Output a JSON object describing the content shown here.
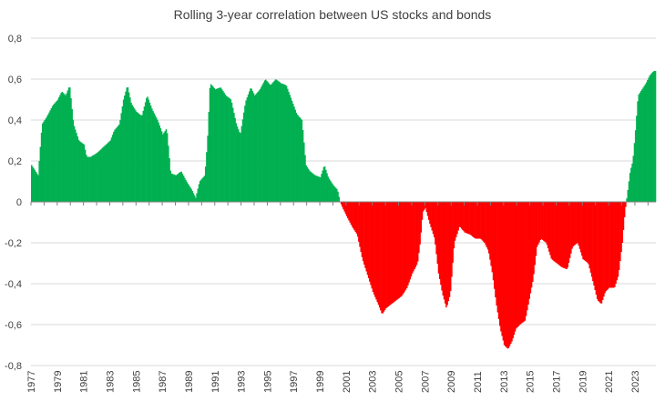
{
  "chart_data": {
    "type": "bar",
    "title": "Rolling 3-year correlation between US stocks and bonds",
    "xlabel": "",
    "ylabel": "",
    "ylim": [
      -0.8,
      0.8
    ],
    "y_ticks": [
      "0,8",
      "0,6",
      "0,4",
      "0,2",
      "0",
      "-0,2",
      "-0,4",
      "-0,6",
      "-0,8"
    ],
    "y_tick_values": [
      0.8,
      0.6,
      0.4,
      0.2,
      0,
      -0.2,
      -0.4,
      -0.6,
      -0.8
    ],
    "x_ticks": [
      "1977",
      "1979",
      "1981",
      "1983",
      "1985",
      "1987",
      "1989",
      "1991",
      "1993",
      "1995",
      "1997",
      "1999",
      "2001",
      "2003",
      "2005",
      "2007",
      "2009",
      "2011",
      "2013",
      "2015",
      "2017",
      "2019",
      "2021",
      "2023"
    ],
    "x_range": [
      1977.0,
      2024.6
    ],
    "grid": true,
    "colors": {
      "positive": "#00b050",
      "negative": "#ff0000",
      "text": "#404040",
      "grid": "#d9d9d9"
    },
    "series": [
      {
        "name": "Rolling 3-year correlation",
        "points": [
          [
            1977.0,
            0.18
          ],
          [
            1977.5,
            0.13
          ],
          [
            1977.8,
            0.38
          ],
          [
            1978.2,
            0.42
          ],
          [
            1978.6,
            0.47
          ],
          [
            1979.0,
            0.5
          ],
          [
            1979.3,
            0.54
          ],
          [
            1979.6,
            0.52
          ],
          [
            1979.9,
            0.57
          ],
          [
            1980.2,
            0.38
          ],
          [
            1980.6,
            0.3
          ],
          [
            1981.0,
            0.28
          ],
          [
            1981.2,
            0.22
          ],
          [
            1981.5,
            0.22
          ],
          [
            1982.0,
            0.24
          ],
          [
            1982.5,
            0.27
          ],
          [
            1983.0,
            0.3
          ],
          [
            1983.3,
            0.35
          ],
          [
            1983.7,
            0.38
          ],
          [
            1984.0,
            0.5
          ],
          [
            1984.3,
            0.57
          ],
          [
            1984.6,
            0.48
          ],
          [
            1985.0,
            0.44
          ],
          [
            1985.4,
            0.42
          ],
          [
            1985.8,
            0.52
          ],
          [
            1986.2,
            0.45
          ],
          [
            1986.6,
            0.4
          ],
          [
            1987.0,
            0.33
          ],
          [
            1987.3,
            0.36
          ],
          [
            1987.6,
            0.14
          ],
          [
            1988.0,
            0.13
          ],
          [
            1988.4,
            0.15
          ],
          [
            1988.8,
            0.1
          ],
          [
            1989.2,
            0.06
          ],
          [
            1989.5,
            0.02
          ],
          [
            1989.8,
            0.1
          ],
          [
            1990.2,
            0.13
          ],
          [
            1990.4,
            0.3
          ],
          [
            1990.6,
            0.58
          ],
          [
            1991.0,
            0.55
          ],
          [
            1991.4,
            0.56
          ],
          [
            1991.8,
            0.52
          ],
          [
            1992.2,
            0.5
          ],
          [
            1992.6,
            0.38
          ],
          [
            1992.9,
            0.33
          ],
          [
            1993.3,
            0.49
          ],
          [
            1993.7,
            0.56
          ],
          [
            1994.0,
            0.52
          ],
          [
            1994.4,
            0.55
          ],
          [
            1994.8,
            0.6
          ],
          [
            1995.2,
            0.57
          ],
          [
            1995.6,
            0.6
          ],
          [
            1996.0,
            0.58
          ],
          [
            1996.4,
            0.57
          ],
          [
            1996.8,
            0.5
          ],
          [
            1997.2,
            0.43
          ],
          [
            1997.6,
            0.4
          ],
          [
            1997.9,
            0.18
          ],
          [
            1998.2,
            0.15
          ],
          [
            1998.6,
            0.13
          ],
          [
            1999.0,
            0.12
          ],
          [
            1999.3,
            0.18
          ],
          [
            1999.6,
            0.12
          ],
          [
            2000.0,
            0.08
          ],
          [
            2000.3,
            0.06
          ],
          [
            2000.5,
            0.0
          ],
          [
            2000.7,
            -0.03
          ],
          [
            2001.0,
            -0.07
          ],
          [
            2001.4,
            -0.12
          ],
          [
            2001.8,
            -0.16
          ],
          [
            2002.2,
            -0.28
          ],
          [
            2002.6,
            -0.36
          ],
          [
            2003.0,
            -0.44
          ],
          [
            2003.4,
            -0.5
          ],
          [
            2003.7,
            -0.55
          ],
          [
            2004.0,
            -0.52
          ],
          [
            2004.4,
            -0.5
          ],
          [
            2004.8,
            -0.48
          ],
          [
            2005.2,
            -0.46
          ],
          [
            2005.6,
            -0.42
          ],
          [
            2006.0,
            -0.35
          ],
          [
            2006.4,
            -0.3
          ],
          [
            2006.6,
            -0.2
          ],
          [
            2006.8,
            -0.05
          ],
          [
            2007.0,
            -0.03
          ],
          [
            2007.3,
            -0.1
          ],
          [
            2007.7,
            -0.18
          ],
          [
            2008.0,
            -0.35
          ],
          [
            2008.3,
            -0.45
          ],
          [
            2008.6,
            -0.52
          ],
          [
            2008.9,
            -0.45
          ],
          [
            2009.2,
            -0.2
          ],
          [
            2009.6,
            -0.12
          ],
          [
            2010.0,
            -0.15
          ],
          [
            2010.4,
            -0.16
          ],
          [
            2010.8,
            -0.18
          ],
          [
            2011.2,
            -0.18
          ],
          [
            2011.5,
            -0.2
          ],
          [
            2011.8,
            -0.24
          ],
          [
            2012.1,
            -0.35
          ],
          [
            2012.4,
            -0.5
          ],
          [
            2012.7,
            -0.62
          ],
          [
            2013.0,
            -0.7
          ],
          [
            2013.3,
            -0.72
          ],
          [
            2013.6,
            -0.68
          ],
          [
            2013.9,
            -0.62
          ],
          [
            2014.2,
            -0.6
          ],
          [
            2014.6,
            -0.58
          ],
          [
            2014.9,
            -0.48
          ],
          [
            2015.2,
            -0.38
          ],
          [
            2015.5,
            -0.22
          ],
          [
            2015.8,
            -0.18
          ],
          [
            2016.2,
            -0.2
          ],
          [
            2016.6,
            -0.28
          ],
          [
            2017.0,
            -0.3
          ],
          [
            2017.4,
            -0.32
          ],
          [
            2017.8,
            -0.33
          ],
          [
            2018.2,
            -0.22
          ],
          [
            2018.6,
            -0.2
          ],
          [
            2019.0,
            -0.28
          ],
          [
            2019.4,
            -0.3
          ],
          [
            2019.8,
            -0.4
          ],
          [
            2020.1,
            -0.48
          ],
          [
            2020.4,
            -0.5
          ],
          [
            2020.7,
            -0.44
          ],
          [
            2021.0,
            -0.42
          ],
          [
            2021.4,
            -0.42
          ],
          [
            2021.7,
            -0.36
          ],
          [
            2022.0,
            -0.2
          ],
          [
            2022.2,
            -0.05
          ],
          [
            2022.4,
            0.05
          ],
          [
            2022.6,
            0.15
          ],
          [
            2022.8,
            0.2
          ],
          [
            2023.0,
            0.35
          ],
          [
            2023.2,
            0.52
          ],
          [
            2023.5,
            0.55
          ],
          [
            2023.8,
            0.58
          ],
          [
            2024.1,
            0.62
          ],
          [
            2024.4,
            0.64
          ]
        ]
      }
    ]
  }
}
